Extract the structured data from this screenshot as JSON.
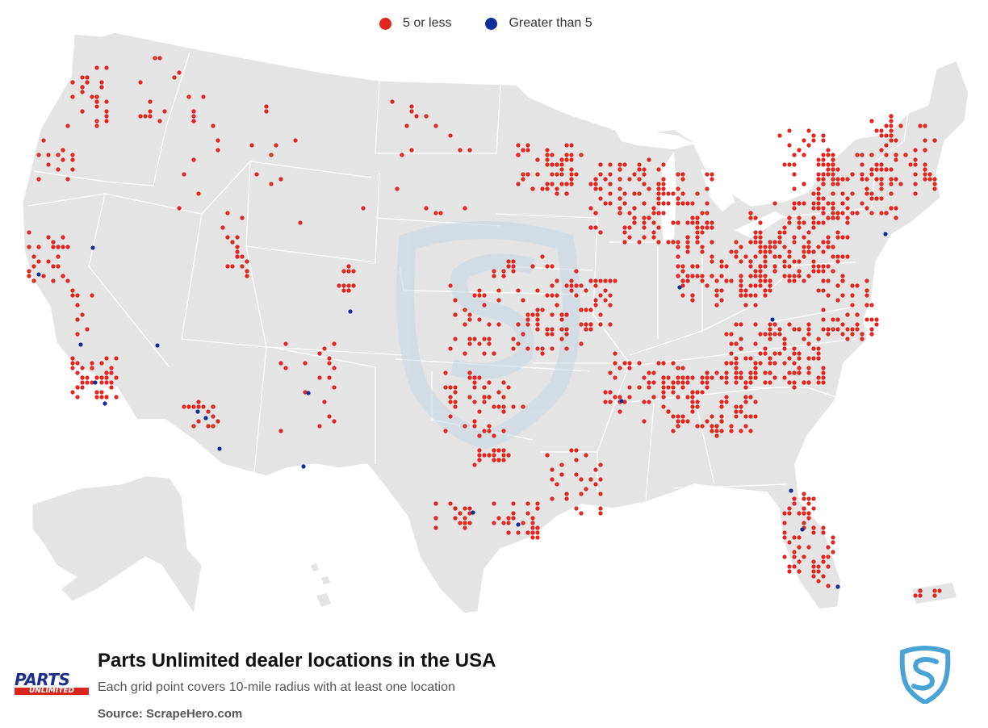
{
  "legend": {
    "items": [
      {
        "label": "5 or less",
        "color": "#e0261e"
      },
      {
        "label": "Greater than 5",
        "color": "#0d2f9b"
      }
    ]
  },
  "map": {
    "land_color": "#e4e4e4",
    "border_color": "#ffffff",
    "watermark_color": "#c8d7e3"
  },
  "footer": {
    "title": "Parts Unlimited dealer locations in the USA",
    "subtitle": "Each grid point covers 10-mile radius with at least one location",
    "source": "Source: ScrapeHero.com",
    "brand_line1": "PARTS",
    "brand_line2": "UNLIMITED",
    "sh_logo_color": "#4aa3d6"
  }
}
